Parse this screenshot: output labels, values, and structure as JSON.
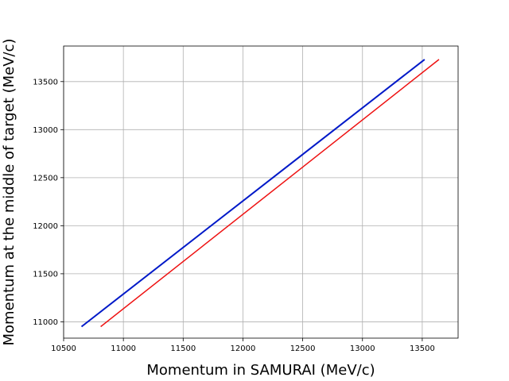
{
  "chart_data": {
    "type": "line",
    "title": "",
    "xlabel": "Momentum in SAMURAI (MeV/c)",
    "ylabel": "Momentum at the middle of target (MeV/c)",
    "xlim": [
      10500,
      13800
    ],
    "ylim": [
      10830,
      13870
    ],
    "xticks": [
      10500,
      11000,
      11500,
      12000,
      12500,
      13000,
      13500
    ],
    "yticks": [
      11000,
      11500,
      12000,
      12500,
      13000,
      13500
    ],
    "grid": true,
    "legend": "none",
    "series": [
      {
        "color": "#0019c8",
        "x": [
          10650,
          13520
        ],
        "y": [
          10950,
          13730
        ]
      },
      {
        "color": "#ee1111",
        "x": [
          10810,
          13640
        ],
        "y": [
          10950,
          13730
        ]
      }
    ]
  }
}
